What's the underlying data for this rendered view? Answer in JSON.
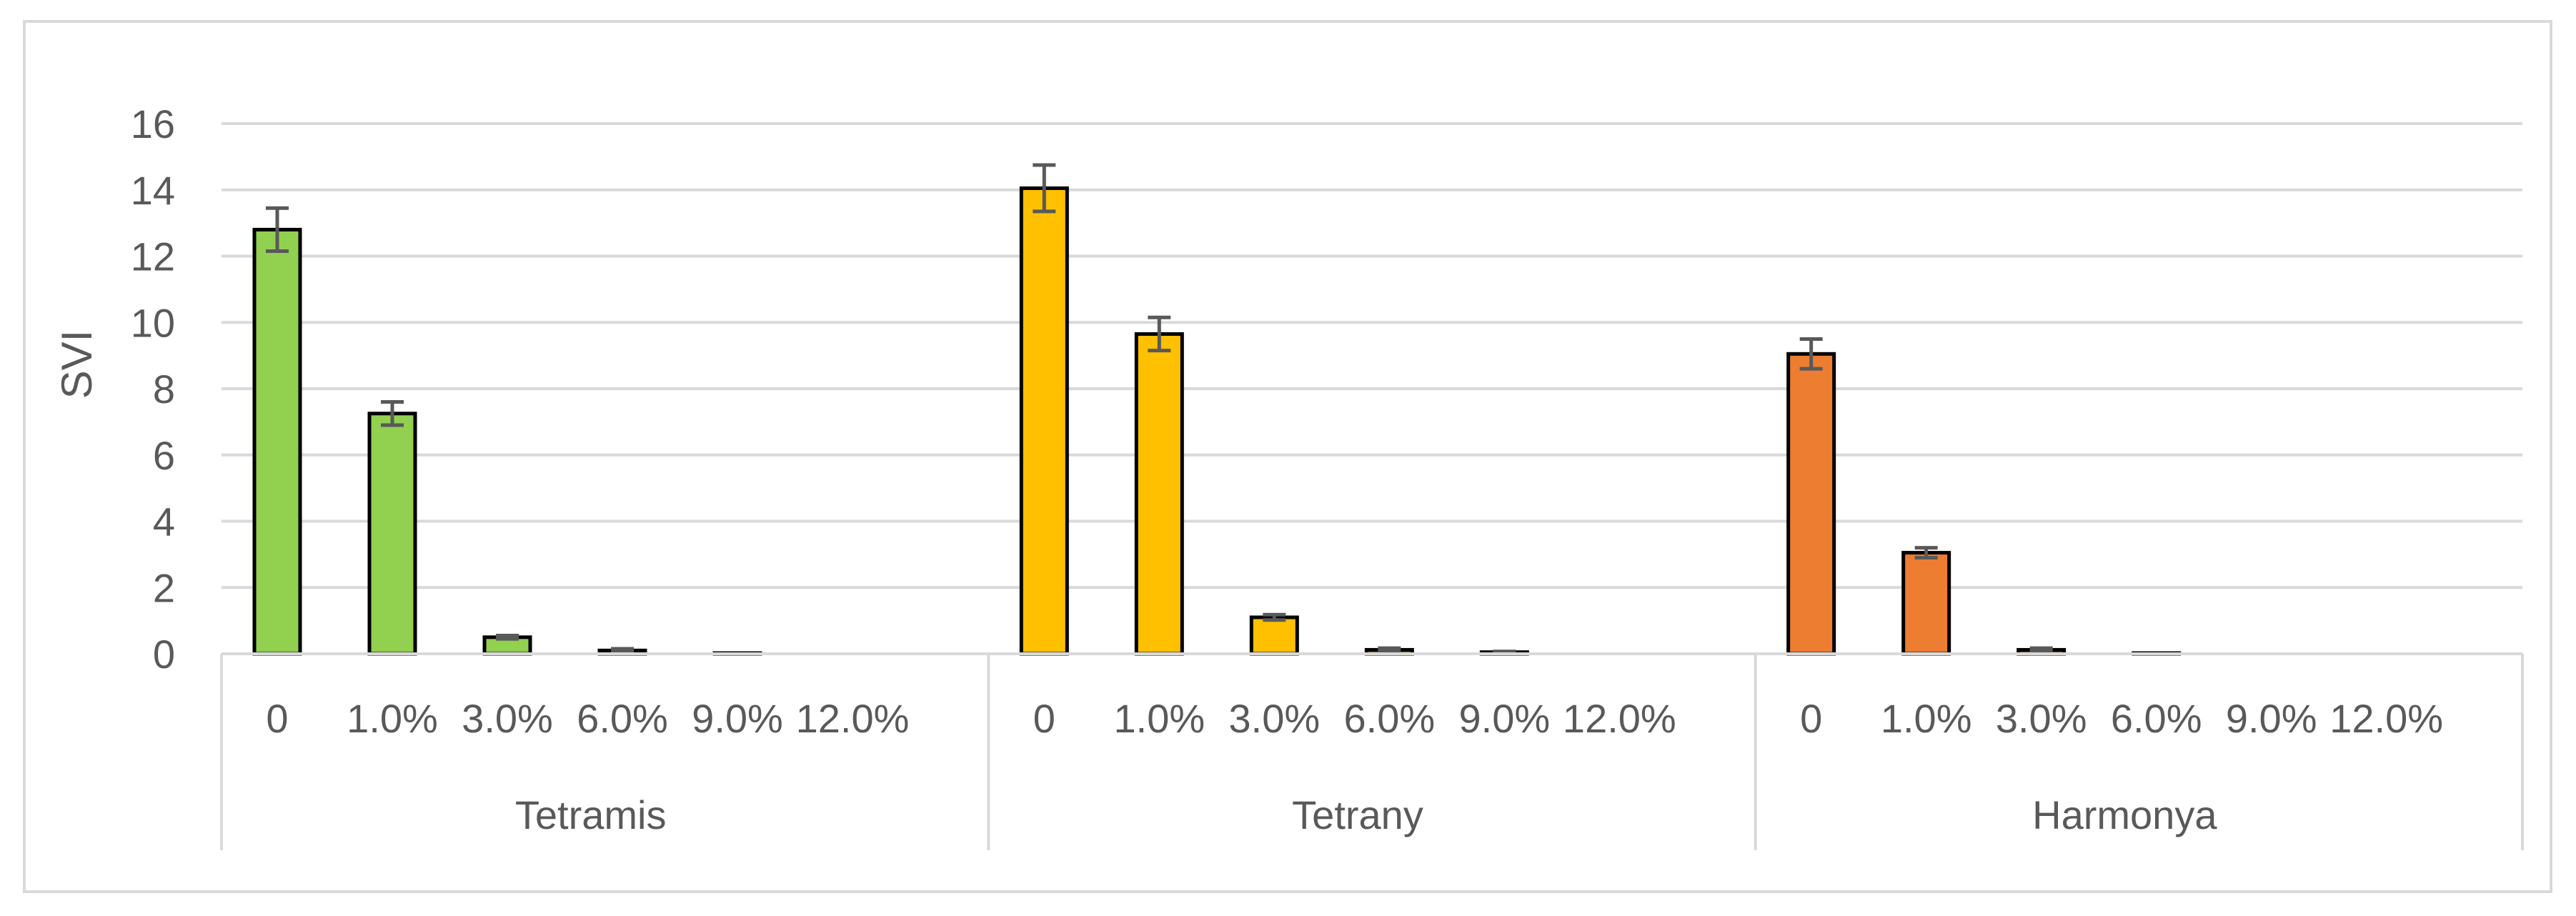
{
  "chart_data": {
    "type": "bar",
    "title": "",
    "ylabel": "SVI",
    "xlabel": "",
    "ylim": [
      0,
      16
    ],
    "yticks": [
      0,
      2,
      4,
      6,
      8,
      10,
      12,
      14,
      16
    ],
    "grid": true,
    "legend": "none",
    "groups": [
      {
        "name": "Tetramis",
        "color": "#92d050",
        "categories": [
          "0",
          "1.0%",
          "3.0%",
          "6.0%",
          "9.0%",
          "12.0%"
        ],
        "values": [
          12.8,
          7.25,
          0.5,
          0.1,
          0.02,
          0.0
        ],
        "errors": [
          0.65,
          0.35,
          0.05,
          0.05,
          0.0,
          0.0
        ]
      },
      {
        "name": "Tetrany",
        "color": "#ffc000",
        "categories": [
          "0",
          "1.0%",
          "3.0%",
          "6.0%",
          "9.0%",
          "12.0%"
        ],
        "values": [
          14.05,
          9.65,
          1.1,
          0.12,
          0.05,
          0.0
        ],
        "errors": [
          0.7,
          0.5,
          0.08,
          0.05,
          0.02,
          0.0
        ]
      },
      {
        "name": "Harmonya",
        "color": "#ed7d31",
        "categories": [
          "0",
          "1.0%",
          "3.0%",
          "6.0%",
          "9.0%",
          "12.0%"
        ],
        "values": [
          9.05,
          3.05,
          0.12,
          0.02,
          0.0,
          0.0
        ],
        "errors": [
          0.45,
          0.15,
          0.05,
          0.0,
          0.0,
          0.0
        ]
      }
    ]
  }
}
